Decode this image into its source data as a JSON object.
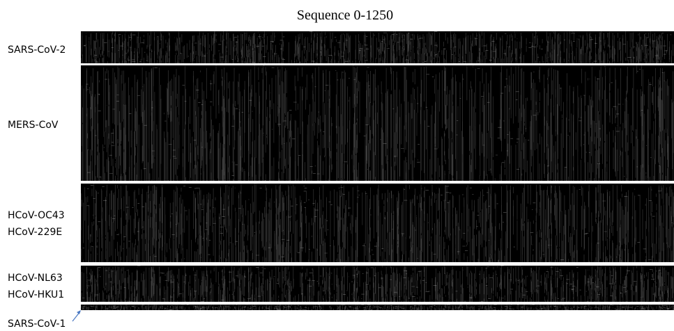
{
  "title": "Sequence 0-1250",
  "panels": [
    {
      "labels": [
        "SARS-CoV-2"
      ]
    },
    {
      "labels": [
        "MERS-CoV"
      ]
    },
    {
      "labels": [
        "HCoV-OC43",
        "HCoV-229E"
      ]
    },
    {
      "labels": [
        "HCoV-NL63",
        "HCoV-HKU1"
      ]
    },
    {
      "labels": [
        "SARS-CoV-1"
      ]
    }
  ]
}
